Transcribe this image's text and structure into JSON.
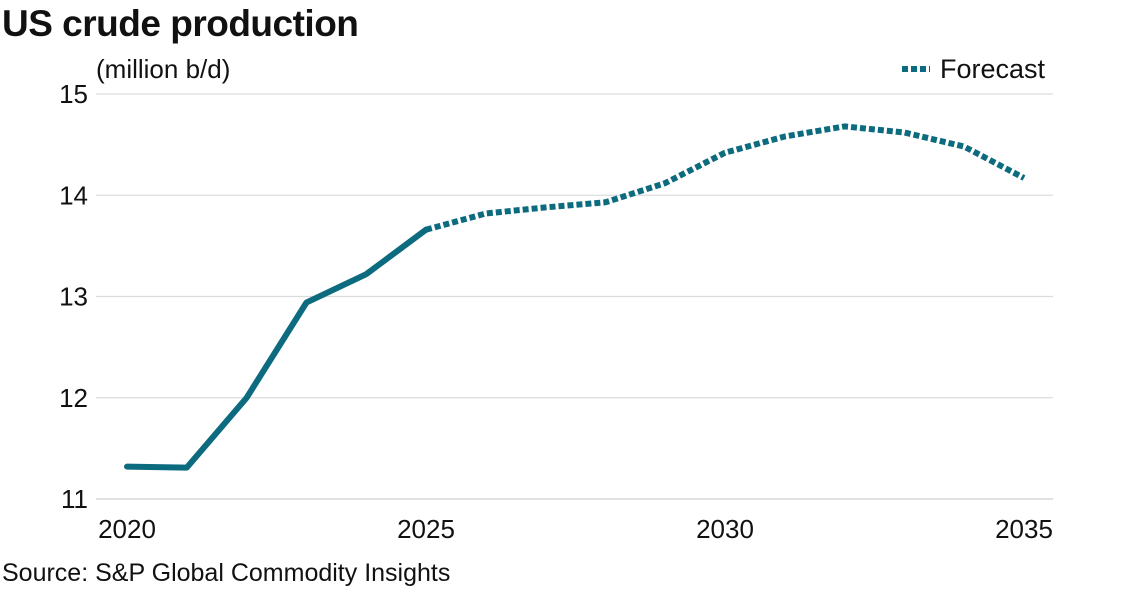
{
  "chart_data": {
    "type": "line",
    "title": "US crude production",
    "ylabel": "(million b/d)",
    "source": "Source: S&P Global Commodity Insights",
    "legend": {
      "label": "Forecast",
      "placement": "top-right"
    },
    "xlim": [
      2020,
      2035
    ],
    "ylim": [
      11,
      15
    ],
    "x_ticks": [
      2020,
      2025,
      2030,
      2035
    ],
    "y_ticks": [
      11,
      12,
      13,
      14,
      15
    ],
    "grid": "horizontal",
    "color": "#0d6b7f",
    "series": [
      {
        "style": "solid",
        "x": [
          2020,
          2021,
          2022,
          2023,
          2024,
          2025
        ],
        "values": [
          11.32,
          11.31,
          12.0,
          12.94,
          13.22,
          13.66
        ]
      },
      {
        "name": "Forecast",
        "style": "dotted",
        "x": [
          2025,
          2026,
          2027,
          2028,
          2029,
          2030,
          2031,
          2032,
          2033,
          2034,
          2035
        ],
        "values": [
          13.66,
          13.82,
          13.88,
          13.93,
          14.12,
          14.42,
          14.58,
          14.68,
          14.62,
          14.48,
          14.17
        ]
      }
    ]
  }
}
